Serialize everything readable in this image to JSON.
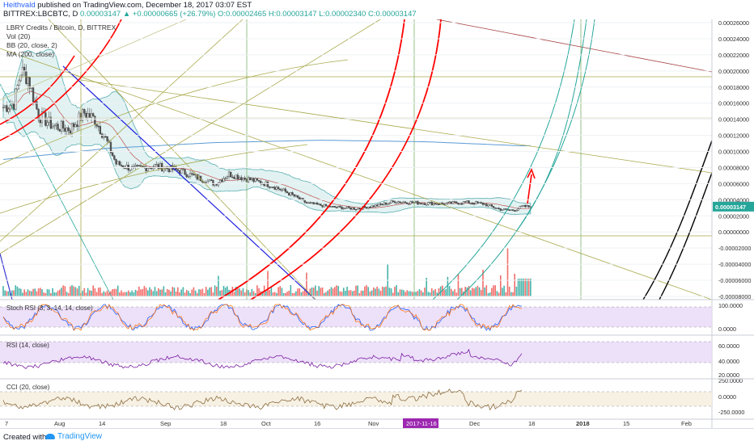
{
  "header": {
    "author": "Heithvald",
    "published": "published on TradingView.com, December 18, 2017 03:07 EST",
    "symbol": "BITTREX:LBCBTC, D",
    "change": "0.00003147 ▲ +0.00000665 (+26.79%)",
    "ohlc": "O:0.00002465 H:0.00003147 L:0.00002340 C:0.00003147"
  },
  "legend": {
    "title": "LBRY Credits / Bitcoin, D, BITTREX",
    "vol": "Vol (20)",
    "bb": "BB (20, close, 2)",
    "ma": "MA (200, close)"
  },
  "price_axis": {
    "ticks": [
      "0.00026000",
      "0.00024000",
      "0.00022000",
      "0.00020000",
      "0.00018000",
      "0.00016000",
      "0.00014000",
      "0.00012000",
      "0.00010000",
      "0.00008000",
      "0.00006000",
      "0.00004000",
      "0.00002000",
      "0.00000000",
      "-0.00002000",
      "-0.00004000",
      "-0.00006000",
      "-0.00008000"
    ],
    "last": "0.00003147"
  },
  "panes": {
    "stoch": {
      "label": "Stoch RSI (3, 3, 14, 14, close)",
      "ticks": [
        "100.0000",
        "0.0000"
      ]
    },
    "rsi": {
      "label": "RSI (14, close)",
      "ticks": [
        "60.0000",
        "40.0000",
        "20.0000"
      ]
    },
    "cci": {
      "label": "CCI (20, close)",
      "ticks": [
        "250.0000",
        "0.0000",
        "-250.0000"
      ]
    }
  },
  "time_axis": [
    "7",
    "Aug",
    "14",
    "Sep",
    "18",
    "Oct",
    "16",
    "Nov",
    "2017-11-16",
    "Dec",
    "18",
    "2018",
    "15",
    "Feb"
  ],
  "footer": {
    "created": "Created with",
    "brand": "TradingView"
  },
  "colors": {
    "up": "#26a69a",
    "down": "#ef5350",
    "bb_fill": "#cfe9ea",
    "ma": "#5b9bd5",
    "fib_arc": "#ff0000",
    "green_arc": "#26a69a",
    "blue_line": "#1f1fe0",
    "olive": "#a8a84a",
    "maroon": "#a64040",
    "osc_bg": "#e9d8f7",
    "cci_bg": "#f5eddd"
  },
  "chart_data": {
    "type": "candlestick",
    "title": "LBRY Credits / Bitcoin, D, BITTREX",
    "ylim": [
      -9e-05,
      0.00026
    ],
    "last_close": 3.147e-05,
    "price_anchors": [
      {
        "i": 0,
        "v": 0.000155
      },
      {
        "i": 6,
        "v": 0.00016
      },
      {
        "i": 10,
        "v": 0.0002
      },
      {
        "i": 14,
        "v": 0.000192
      },
      {
        "i": 20,
        "v": 0.000145
      },
      {
        "i": 28,
        "v": 0.000132
      },
      {
        "i": 38,
        "v": 0.000128
      },
      {
        "i": 46,
        "v": 0.000148
      },
      {
        "i": 52,
        "v": 0.00014
      },
      {
        "i": 58,
        "v": 0.000116
      },
      {
        "i": 64,
        "v": 8.5e-05
      },
      {
        "i": 74,
        "v": 7.8e-05
      },
      {
        "i": 86,
        "v": 8.2e-05
      },
      {
        "i": 100,
        "v": 7.6e-05
      },
      {
        "i": 112,
        "v": 6.6e-05
      },
      {
        "i": 120,
        "v": 6e-05
      },
      {
        "i": 128,
        "v": 7.2e-05
      },
      {
        "i": 140,
        "v": 6.5e-05
      },
      {
        "i": 152,
        "v": 5.8e-05
      },
      {
        "i": 162,
        "v": 4.8e-05
      },
      {
        "i": 172,
        "v": 3.6e-05
      },
      {
        "i": 186,
        "v": 3.1e-05
      },
      {
        "i": 200,
        "v": 2.9e-05
      },
      {
        "i": 212,
        "v": 3.3e-05
      },
      {
        "i": 222,
        "v": 3.8e-05
      },
      {
        "i": 236,
        "v": 3.6e-05
      },
      {
        "i": 250,
        "v": 3.5e-05
      },
      {
        "i": 262,
        "v": 3.7e-05
      },
      {
        "i": 272,
        "v": 3.5e-05
      },
      {
        "i": 282,
        "v": 2.8e-05
      },
      {
        "i": 290,
        "v": 2.7e-05
      },
      {
        "i": 294,
        "v": 3.15e-05
      }
    ],
    "ma200": [
      {
        "i": 0,
        "v": 9e-05
      },
      {
        "i": 60,
        "v": 0.000104
      },
      {
        "i": 120,
        "v": 0.000111
      },
      {
        "i": 180,
        "v": 0.000114
      },
      {
        "i": 240,
        "v": 0.000112
      },
      {
        "i": 294,
        "v": 0.000107
      }
    ]
  }
}
